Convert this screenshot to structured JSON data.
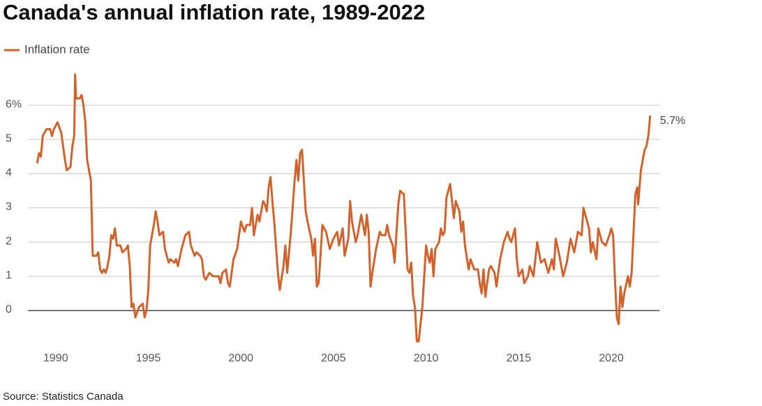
{
  "chart_data": {
    "type": "line",
    "title": "Canada's annual inflation rate, 1989-2022",
    "source": "Source: Statistics Canada",
    "annotation": "5.7%",
    "xlim": [
      1988.5,
      2022.6
    ],
    "xticks": [
      1990,
      1995,
      2000,
      2005,
      2010,
      2015,
      2020
    ],
    "ylim": [
      -1,
      7
    ],
    "yticks": [
      0,
      1,
      2,
      3,
      4,
      5,
      {
        "value": 6,
        "label": "6%"
      }
    ],
    "grid": true,
    "legend": "top-left",
    "x": [
      1989.0,
      1989.1,
      1989.2,
      1989.3,
      1989.5,
      1989.7,
      1989.8,
      1989.9,
      1990.1,
      1990.3,
      1990.5,
      1990.6,
      1990.8,
      1990.9,
      1991.0,
      1991.05,
      1991.1,
      1991.3,
      1991.4,
      1991.5,
      1991.6,
      1991.7,
      1991.9,
      1992.0,
      1992.2,
      1992.3,
      1992.4,
      1992.5,
      1992.6,
      1992.7,
      1992.8,
      1992.9,
      1993.0,
      1993.1,
      1993.2,
      1993.3,
      1993.5,
      1993.6,
      1993.8,
      1993.9,
      1994.0,
      1994.1,
      1994.2,
      1994.3,
      1994.5,
      1994.7,
      1994.8,
      1994.9,
      1995.0,
      1995.1,
      1995.3,
      1995.4,
      1995.5,
      1995.6,
      1995.8,
      1995.9,
      1996.0,
      1996.1,
      1996.2,
      1996.4,
      1996.5,
      1996.6,
      1996.8,
      1997.0,
      1997.2,
      1997.3,
      1997.5,
      1997.6,
      1997.8,
      1997.9,
      1998.0,
      1998.1,
      1998.3,
      1998.5,
      1998.6,
      1998.8,
      1998.9,
      1999.0,
      1999.2,
      1999.3,
      1999.4,
      1999.6,
      1999.8,
      2000.0,
      2000.2,
      2000.3,
      2000.5,
      2000.6,
      2000.7,
      2000.9,
      2001.0,
      2001.2,
      2001.3,
      2001.4,
      2001.5,
      2001.6,
      2001.7,
      2001.8,
      2002.0,
      2002.1,
      2002.3,
      2002.4,
      2002.5,
      2002.7,
      2002.9,
      2003.0,
      2003.1,
      2003.2,
      2003.3,
      2003.5,
      2003.6,
      2003.8,
      2003.9,
      2004.0,
      2004.1,
      2004.2,
      2004.3,
      2004.4,
      2004.6,
      2004.8,
      2005.0,
      2005.2,
      2005.3,
      2005.5,
      2005.6,
      2005.8,
      2005.9,
      2006.0,
      2006.2,
      2006.3,
      2006.5,
      2006.7,
      2006.8,
      2006.9,
      2007.0,
      2007.1,
      2007.3,
      2007.5,
      2007.6,
      2007.8,
      2007.9,
      2008.0,
      2008.2,
      2008.3,
      2008.5,
      2008.6,
      2008.8,
      2009.0,
      2009.1,
      2009.2,
      2009.3,
      2009.4,
      2009.5,
      2009.6,
      2009.8,
      2009.9,
      2010.0,
      2010.1,
      2010.2,
      2010.3,
      2010.4,
      2010.5,
      2010.7,
      2010.8,
      2010.9,
      2011.0,
      2011.1,
      2011.3,
      2011.5,
      2011.6,
      2011.8,
      2011.9,
      2012.0,
      2012.1,
      2012.3,
      2012.4,
      2012.6,
      2012.8,
      2012.9,
      2013.0,
      2013.1,
      2013.2,
      2013.4,
      2013.5,
      2013.7,
      2013.8,
      2014.0,
      2014.2,
      2014.4,
      2014.5,
      2014.6,
      2014.8,
      2014.9,
      2015.0,
      2015.2,
      2015.3,
      2015.5,
      2015.6,
      2015.8,
      2016.0,
      2016.2,
      2016.4,
      2016.6,
      2016.8,
      2016.9,
      2017.0,
      2017.2,
      2017.4,
      2017.6,
      2017.8,
      2018.0,
      2018.2,
      2018.4,
      2018.5,
      2018.6,
      2018.8,
      2018.9,
      2019.0,
      2019.2,
      2019.3,
      2019.5,
      2019.7,
      2019.9,
      2020.0,
      2020.1,
      2020.2,
      2020.3,
      2020.4,
      2020.5,
      2020.6,
      2020.7,
      2020.9,
      2021.0,
      2021.1,
      2021.3,
      2021.4,
      2021.45,
      2021.6,
      2021.8,
      2021.9,
      2022.0,
      2022.1
    ],
    "series": [
      {
        "name": "Inflation rate",
        "color": "#d2622b",
        "values": [
          4.3,
          4.6,
          4.5,
          5.1,
          5.3,
          5.3,
          5.1,
          5.3,
          5.5,
          5.2,
          4.4,
          4.1,
          4.2,
          4.8,
          5.1,
          6.9,
          6.2,
          6.2,
          6.3,
          6.0,
          5.5,
          4.4,
          3.8,
          1.6,
          1.6,
          1.7,
          1.2,
          1.1,
          1.2,
          1.1,
          1.3,
          1.6,
          2.2,
          2.1,
          2.4,
          1.9,
          1.9,
          1.7,
          1.8,
          1.9,
          1.3,
          0.1,
          0.2,
          -0.2,
          0.1,
          0.2,
          -0.2,
          0.0,
          0.6,
          1.9,
          2.5,
          2.9,
          2.6,
          2.2,
          2.3,
          1.8,
          1.6,
          1.4,
          1.5,
          1.4,
          1.5,
          1.3,
          1.8,
          2.2,
          2.3,
          1.9,
          1.6,
          1.7,
          1.6,
          1.5,
          1.0,
          0.9,
          1.1,
          1.0,
          1.0,
          1.0,
          0.8,
          1.1,
          1.2,
          0.8,
          0.7,
          1.5,
          1.8,
          2.6,
          2.3,
          2.5,
          2.5,
          3.0,
          2.2,
          2.8,
          2.6,
          3.2,
          3.1,
          2.9,
          3.6,
          3.9,
          3.2,
          2.6,
          1.1,
          0.6,
          1.3,
          1.9,
          1.1,
          2.3,
          3.8,
          4.4,
          3.8,
          4.6,
          4.7,
          2.9,
          2.6,
          2.1,
          1.6,
          2.1,
          0.7,
          0.8,
          1.6,
          2.5,
          2.3,
          1.8,
          2.1,
          2.3,
          1.9,
          2.4,
          1.6,
          2.1,
          3.2,
          2.6,
          2.0,
          2.2,
          2.8,
          2.2,
          2.8,
          2.3,
          0.7,
          1.1,
          1.8,
          2.3,
          2.2,
          2.2,
          2.5,
          2.2,
          1.9,
          1.4,
          3.1,
          3.5,
          3.4,
          1.2,
          1.1,
          1.4,
          0.4,
          0.1,
          -0.9,
          -0.9,
          0.1,
          1.0,
          1.9,
          1.6,
          1.4,
          1.8,
          1.0,
          1.8,
          2.0,
          2.4,
          2.2,
          2.3,
          3.3,
          3.7,
          2.7,
          3.2,
          2.9,
          2.3,
          2.6,
          1.9,
          1.2,
          1.5,
          1.2,
          1.2,
          0.8,
          0.5,
          1.2,
          0.4,
          1.2,
          1.3,
          1.1,
          0.7,
          1.5,
          2.0,
          2.3,
          2.1,
          2.0,
          2.4,
          1.5,
          1.0,
          1.2,
          0.8,
          1.0,
          1.3,
          1.0,
          2.0,
          1.4,
          1.5,
          1.1,
          1.5,
          1.2,
          2.1,
          1.6,
          1.0,
          1.4,
          2.1,
          1.7,
          2.3,
          2.2,
          3.0,
          2.8,
          2.4,
          1.7,
          2.0,
          1.5,
          2.4,
          2.0,
          1.9,
          2.2,
          2.4,
          2.2,
          0.9,
          -0.2,
          -0.4,
          0.7,
          0.1,
          0.5,
          1.0,
          0.7,
          1.1,
          3.4,
          3.6,
          3.1,
          4.1,
          4.7,
          4.8,
          5.1,
          5.7
        ]
      }
    ]
  }
}
